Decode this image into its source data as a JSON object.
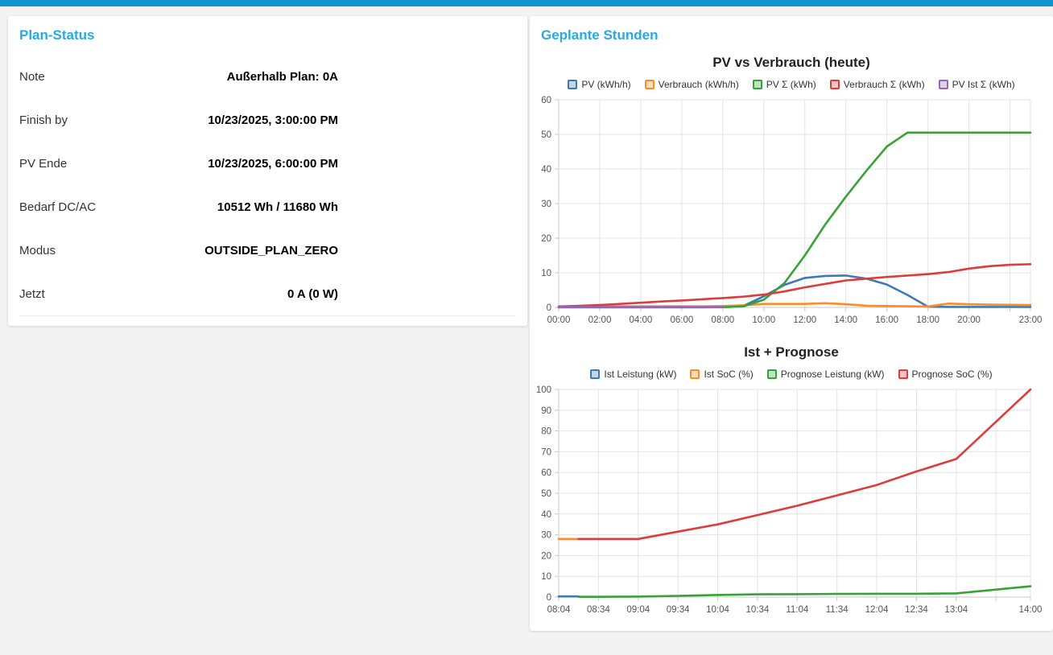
{
  "topbar": {
    "color": "#0c93d0"
  },
  "accent_title_color": "#29a9e2",
  "plan_status": {
    "title": "Plan-Status",
    "rows": [
      {
        "label": "Note",
        "value": "Außerhalb Plan: 0A"
      },
      {
        "label": "Finish by",
        "value": "10/23/2025, 3:00:00 PM"
      },
      {
        "label": "PV Ende",
        "value": "10/23/2025, 6:00:00 PM"
      },
      {
        "label": "Bedarf DC/AC",
        "value": "10512 Wh / 11680 Wh"
      },
      {
        "label": "Modus",
        "value": "OUTSIDE_PLAN_ZERO"
      },
      {
        "label": "Jetzt",
        "value": "0 A (0 W)"
      }
    ]
  },
  "planned_hours": {
    "title": "Geplante Stunden"
  },
  "chart_data": [
    {
      "type": "line",
      "title": "PV vs Verbrauch (heute)",
      "x_domain": [
        "00:00",
        "23:00"
      ],
      "x": [
        "00:00",
        "01:00",
        "02:00",
        "03:00",
        "04:00",
        "05:00",
        "06:00",
        "07:00",
        "08:00",
        "09:00",
        "10:00",
        "11:00",
        "12:00",
        "13:00",
        "14:00",
        "15:00",
        "16:00",
        "17:00",
        "18:00",
        "19:00",
        "20:00",
        "21:00",
        "22:00",
        "23:00"
      ],
      "x_ticks": [
        {
          "t": "00:00",
          "label": "00:00"
        },
        {
          "t": "02:00",
          "label": "02:00"
        },
        {
          "t": "04:00",
          "label": "04:00"
        },
        {
          "t": "06:00",
          "label": "06:00"
        },
        {
          "t": "08:00",
          "label": "08:00"
        },
        {
          "t": "10:00",
          "label": "10:00"
        },
        {
          "t": "12:00",
          "label": "12:00"
        },
        {
          "t": "14:00",
          "label": "14:00"
        },
        {
          "t": "16:00",
          "label": "16:00"
        },
        {
          "t": "18:00",
          "label": "18:00"
        },
        {
          "t": "20:00",
          "label": "20:00"
        },
        {
          "t": "22:00",
          "label": ""
        },
        {
          "t": "23:00",
          "label": "23:00"
        }
      ],
      "ylim": [
        0,
        60
      ],
      "y_step": 10,
      "grid": true,
      "legend_position": "top",
      "series": [
        {
          "name": "PV (kWh/h)",
          "color": "#3d7ab5",
          "values": [
            0.2,
            0.2,
            0.2,
            0.2,
            0.2,
            0.2,
            0.2,
            0.2,
            0.25,
            0.4,
            3.2,
            6.5,
            8.5,
            9.1,
            9.2,
            8.3,
            6.6,
            3.6,
            0.2,
            0.15,
            0.15,
            0.15,
            0.15,
            0.15
          ]
        },
        {
          "name": "Verbrauch (kWh/h)",
          "color": "#fd8c27",
          "values": [
            0.3,
            0.3,
            0.3,
            0.3,
            0.3,
            0.3,
            0.3,
            0.3,
            0.4,
            0.6,
            1.0,
            1.0,
            1.0,
            1.2,
            0.9,
            0.5,
            0.4,
            0.35,
            0.25,
            1.1,
            0.9,
            0.8,
            0.75,
            0.7
          ]
        },
        {
          "name": "PV Σ (kWh)",
          "color": "#35a335",
          "values": [
            0,
            0,
            0,
            0,
            0,
            0,
            0,
            0,
            0.05,
            0.3,
            2.2,
            7.0,
            15.0,
            24.0,
            32.0,
            39.5,
            46.5,
            50.5,
            50.5,
            50.5,
            50.5,
            50.5,
            50.5,
            50.5
          ]
        },
        {
          "name": "Verbrauch Σ (kWh)",
          "color": "#df3b3b",
          "values": [
            0.2,
            0.45,
            0.7,
            1.0,
            1.35,
            1.7,
            2.0,
            2.35,
            2.7,
            3.1,
            3.7,
            4.6,
            5.8,
            6.8,
            7.8,
            8.3,
            8.8,
            9.2,
            9.6,
            10.2,
            11.2,
            11.9,
            12.3,
            12.5
          ]
        },
        {
          "name": "PV Ist Σ (kWh)",
          "color": "#9467bd",
          "values": [
            0.1,
            0.1,
            0.1,
            0.1,
            0.1,
            0.1,
            0.1,
            0.1,
            0.1,
            null,
            null,
            null,
            null,
            null,
            null,
            null,
            null,
            null,
            null,
            null,
            null,
            null,
            null,
            null
          ]
        }
      ]
    },
    {
      "type": "line",
      "title": "Ist + Prognose",
      "x_domain": [
        "08:04",
        "14:00"
      ],
      "x_ticks": [
        {
          "t": "08:04",
          "label": "08:04"
        },
        {
          "t": "08:34",
          "label": "08:34"
        },
        {
          "t": "09:04",
          "label": "09:04"
        },
        {
          "t": "09:34",
          "label": "09:34"
        },
        {
          "t": "10:04",
          "label": "10:04"
        },
        {
          "t": "10:34",
          "label": "10:34"
        },
        {
          "t": "11:04",
          "label": "11:04"
        },
        {
          "t": "11:34",
          "label": "11:34"
        },
        {
          "t": "12:04",
          "label": "12:04"
        },
        {
          "t": "12:34",
          "label": "12:34"
        },
        {
          "t": "13:04",
          "label": "13:04"
        },
        {
          "t": "13:34",
          "label": ""
        },
        {
          "t": "14:00",
          "label": "14:00"
        }
      ],
      "ylim": [
        0,
        100
      ],
      "y_step": 10,
      "grid": true,
      "legend_position": "top",
      "series": [
        {
          "name": "Ist Leistung (kW)",
          "color": "#3d7ab5",
          "points": [
            [
              "08:04",
              0.3
            ],
            [
              "08:19",
              0.3
            ]
          ]
        },
        {
          "name": "Ist SoC (%)",
          "color": "#fd8c27",
          "points": [
            [
              "08:04",
              28
            ],
            [
              "08:19",
              28
            ]
          ]
        },
        {
          "name": "Prognose Leistung (kW)",
          "color": "#35a335",
          "points": [
            [
              "08:19",
              0.1
            ],
            [
              "08:34",
              0.1
            ],
            [
              "09:04",
              0.25
            ],
            [
              "09:34",
              0.6
            ],
            [
              "10:04",
              1.0
            ],
            [
              "10:34",
              1.3
            ],
            [
              "11:04",
              1.4
            ],
            [
              "11:34",
              1.5
            ],
            [
              "12:04",
              1.6
            ],
            [
              "12:34",
              1.6
            ],
            [
              "13:04",
              1.8
            ],
            [
              "14:00",
              5.2
            ]
          ]
        },
        {
          "name": "Prognose SoC (%)",
          "color": "#df3b3b",
          "points": [
            [
              "08:19",
              28
            ],
            [
              "08:34",
              28
            ],
            [
              "09:04",
              28
            ],
            [
              "09:34",
              31.5
            ],
            [
              "10:04",
              35
            ],
            [
              "10:34",
              39.5
            ],
            [
              "11:04",
              44
            ],
            [
              "11:34",
              49
            ],
            [
              "12:04",
              54
            ],
            [
              "12:34",
              60.5
            ],
            [
              "13:04",
              66.5
            ],
            [
              "14:00",
              100
            ]
          ]
        }
      ]
    }
  ]
}
